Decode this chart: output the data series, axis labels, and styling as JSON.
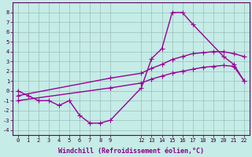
{
  "xlabel": "Windchill (Refroidissement éolien,°C)",
  "bg_color": "#c5ece6",
  "grid_color": "#9bbfba",
  "line_color": "#990099",
  "xlim": [
    -0.5,
    22.5
  ],
  "ylim": [
    -4.5,
    9.0
  ],
  "xticks": [
    0,
    1,
    2,
    3,
    4,
    5,
    6,
    7,
    8,
    9,
    12,
    13,
    14,
    15,
    16,
    17,
    18,
    19,
    20,
    21,
    22
  ],
  "yticks": [
    -4,
    -3,
    -2,
    -1,
    0,
    1,
    2,
    3,
    4,
    5,
    6,
    7,
    8
  ],
  "series1_x": [
    0,
    1,
    2,
    3,
    4,
    5,
    6,
    7,
    8,
    9,
    12,
    13,
    14,
    15,
    16,
    17,
    20,
    21,
    22
  ],
  "series1_y": [
    0.0,
    -0.5,
    -1.0,
    -1.0,
    -1.5,
    -1.0,
    -2.5,
    -3.3,
    -3.3,
    -3.0,
    0.3,
    3.3,
    4.3,
    8.0,
    8.0,
    6.8,
    3.5,
    2.7,
    1.0
  ],
  "series2_x": [
    0,
    9,
    12,
    13,
    14,
    15,
    16,
    17,
    18,
    19,
    20,
    21,
    22
  ],
  "series2_y": [
    -0.5,
    1.3,
    1.8,
    2.3,
    2.7,
    3.2,
    3.5,
    3.8,
    3.9,
    4.0,
    4.0,
    3.8,
    3.5
  ],
  "series3_x": [
    0,
    9,
    12,
    13,
    14,
    15,
    16,
    17,
    18,
    19,
    20,
    21,
    22
  ],
  "series3_y": [
    -1.0,
    0.3,
    0.8,
    1.2,
    1.5,
    1.8,
    2.0,
    2.2,
    2.4,
    2.5,
    2.6,
    2.5,
    1.0
  ],
  "marker": "+",
  "markersize": 4,
  "linewidth": 1.0
}
